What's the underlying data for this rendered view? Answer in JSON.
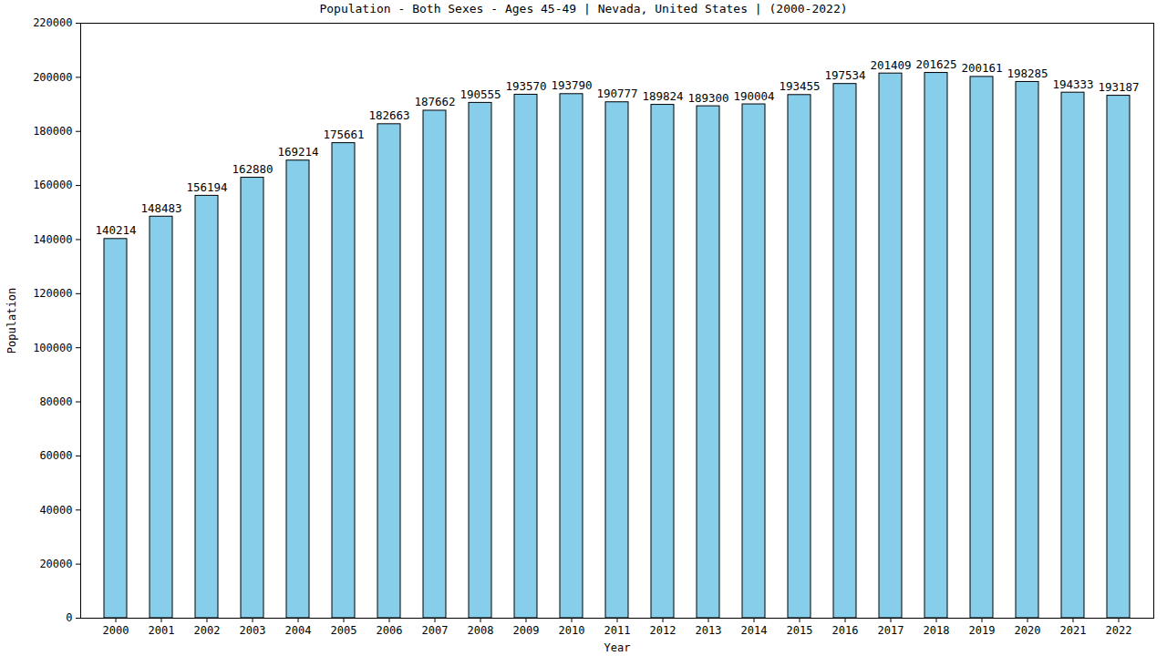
{
  "chart_data": {
    "type": "bar",
    "title": "Population - Both Sexes - Ages 45-49 | Nevada, United States |  (2000-2022)",
    "x_label": "Year",
    "y_label": "Population",
    "categories": [
      "2000",
      "2001",
      "2002",
      "2003",
      "2004",
      "2005",
      "2006",
      "2007",
      "2008",
      "2009",
      "2010",
      "2011",
      "2012",
      "2013",
      "2014",
      "2015",
      "2016",
      "2017",
      "2018",
      "2019",
      "2020",
      "2021",
      "2022"
    ],
    "values": [
      140214,
      148483,
      156194,
      162880,
      169214,
      175661,
      182663,
      187662,
      190555,
      193570,
      193790,
      190777,
      189824,
      189300,
      190004,
      193455,
      197534,
      201409,
      201625,
      200161,
      198285,
      194333,
      193187
    ],
    "color": "#87ceeb",
    "ylim": [
      0,
      220000
    ],
    "yticks": [
      0,
      20000,
      40000,
      60000,
      80000,
      100000,
      120000,
      140000,
      160000,
      180000,
      200000,
      220000
    ],
    "grid": false,
    "data_labels": true
  }
}
